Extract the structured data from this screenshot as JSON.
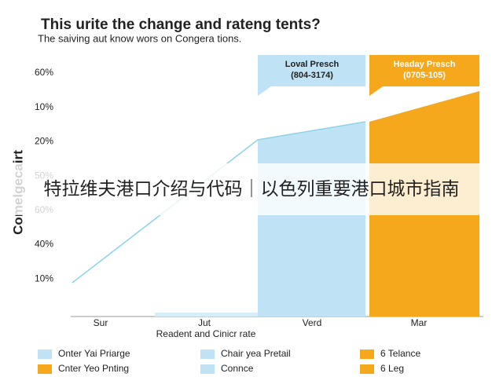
{
  "header": {
    "title": "This urite the change and rateng tents?",
    "subtitle": "The saiving aut know wors on Congera tions."
  },
  "y_axis_label": "Comelgecairt",
  "y_labels": [
    "60%",
    "10%",
    "20%",
    "50%",
    "60%",
    "40%",
    "10%"
  ],
  "x_labels": [
    "Sur",
    "Jut",
    "Verd",
    "Mar"
  ],
  "x_axis_label": "Readent and Cinicr rate",
  "callouts": [
    {
      "title": "Loval Presch",
      "range": "(804-3174)"
    },
    {
      "title": "Headay Presch",
      "range": "(0705-105)"
    }
  ],
  "legend": [
    "Onter Yai Priarge",
    "Cnter Yeo Pnting",
    "Chair yea Pretail",
    "Connce",
    "6 Telance",
    "6 Leg"
  ],
  "banner": "特拉维夫港口介绍与代码｜以色列重要港口城市指南"
}
